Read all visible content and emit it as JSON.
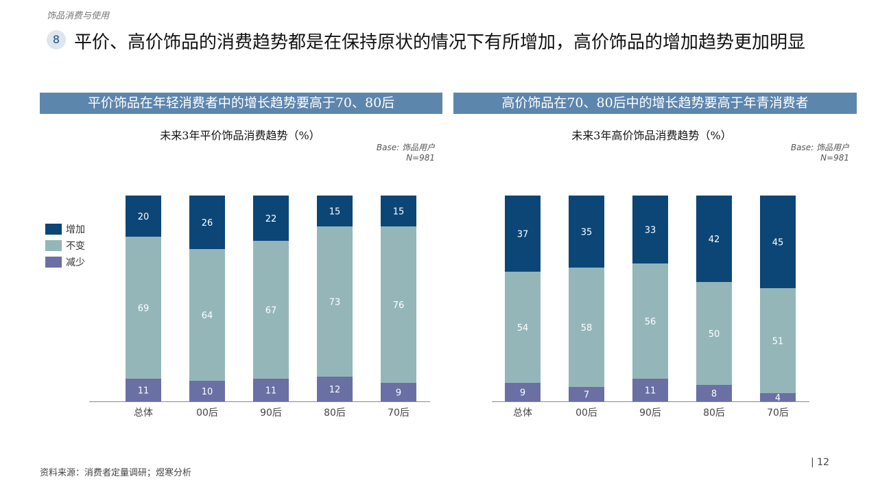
{
  "section_label": "饰品消费与使用",
  "headline": {
    "number": "8",
    "text": "平价、高价饰品的消费趋势都是在保持原状的情况下有所增加，高价饰品的增加趋势更加明显"
  },
  "colors": {
    "banner": "#5d86ad",
    "increase": "#0b4677",
    "unchanged": "#94b6b9",
    "decrease": "#6a6fa4"
  },
  "legend": [
    {
      "key": "increase",
      "label": "增加"
    },
    {
      "key": "unchanged",
      "label": "不变"
    },
    {
      "key": "decrease",
      "label": "减少"
    }
  ],
  "panels": [
    {
      "banner": "平价饰品在年轻消费者中的增长趋势要高于70、80后",
      "base": "Base: 饰品用户",
      "sample": "N=981"
    },
    {
      "banner": "高价饰品在70、80后中的增长趋势要高于年青消费者",
      "base": "Base: 饰品用户",
      "sample": "N=981"
    }
  ],
  "chart_data": [
    {
      "type": "bar",
      "stacked": true,
      "title": "未来3年平价饰品消费趋势（%）",
      "categories": [
        "总体",
        "00后",
        "90后",
        "80后",
        "70后"
      ],
      "series": [
        {
          "name": "减少",
          "key": "decrease",
          "values": [
            11,
            10,
            11,
            12,
            9
          ]
        },
        {
          "name": "不变",
          "key": "unchanged",
          "values": [
            69,
            64,
            67,
            73,
            76
          ]
        },
        {
          "name": "增加",
          "key": "increase",
          "values": [
            20,
            26,
            22,
            15,
            15
          ]
        }
      ],
      "ylim": [
        0,
        100
      ]
    },
    {
      "type": "bar",
      "stacked": true,
      "title": "未来3年高价饰品消费趋势（%）",
      "categories": [
        "总体",
        "00后",
        "90后",
        "80后",
        "70后"
      ],
      "series": [
        {
          "name": "减少",
          "key": "decrease",
          "values": [
            9,
            7,
            11,
            8,
            4
          ]
        },
        {
          "name": "不变",
          "key": "unchanged",
          "values": [
            54,
            58,
            56,
            50,
            51
          ]
        },
        {
          "name": "增加",
          "key": "increase",
          "values": [
            37,
            35,
            33,
            42,
            45
          ]
        }
      ],
      "ylim": [
        0,
        100
      ]
    }
  ],
  "footer": {
    "source": "资料来源：消费者定量调研；煜寒分析",
    "page": "| 12"
  }
}
